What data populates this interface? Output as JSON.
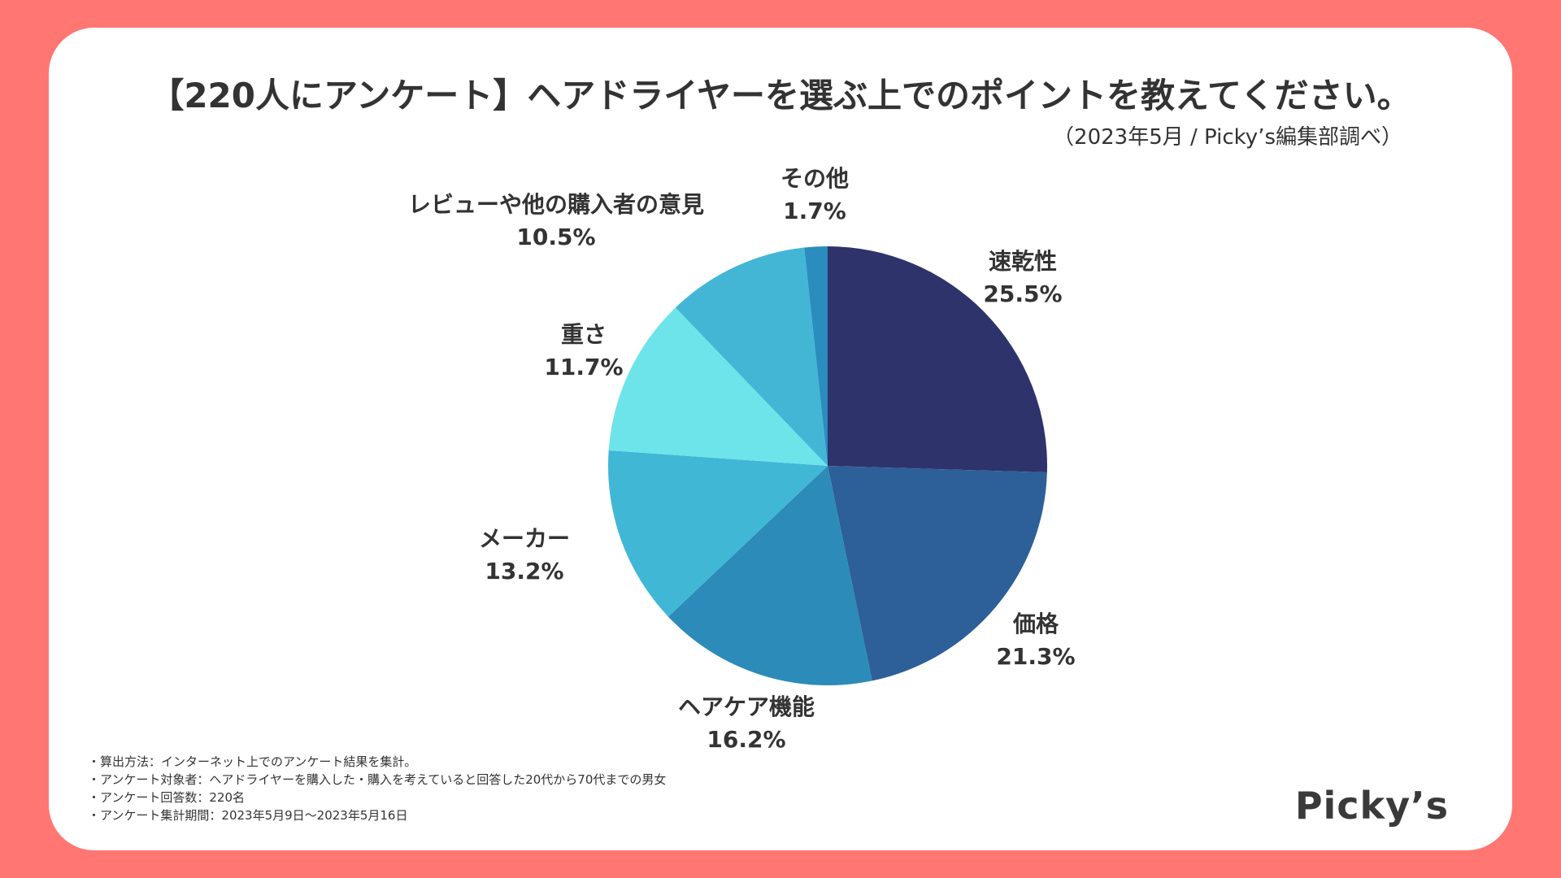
{
  "title": "【220人にアンケート】ヘアドライヤーを選ぶ上でのポイントを教えてください。",
  "source": "（2023年5月 / Picky’s編集部調べ）",
  "chart_data": {
    "type": "pie",
    "unit": "%",
    "start": "12 o'clock",
    "direction": "clockwise",
    "slices": [
      {
        "label": "速乾性",
        "value": 25.5,
        "display": "25.5%",
        "color": "#2f336b"
      },
      {
        "label": "価格",
        "value": 21.3,
        "display": "21.3%",
        "color": "#2d5f98"
      },
      {
        "label": "ヘアケア機能",
        "value": 16.2,
        "display": "16.2%",
        "color": "#2c8bb9"
      },
      {
        "label": "メーカー",
        "value": 13.2,
        "display": "13.2%",
        "color": "#41b7d6"
      },
      {
        "label": "重さ",
        "value": 11.7,
        "display": "11.7%",
        "color": "#6de4ea"
      },
      {
        "label": "レビューや他の購入者の意見",
        "value": 10.5,
        "display": "10.5%",
        "color": "#43b6d6"
      },
      {
        "label": "その他",
        "value": 1.7,
        "display": "1.7%",
        "color": "#2b8cbe"
      }
    ]
  },
  "notes": [
    "・算出方法：インターネット上でのアンケート結果を集計。",
    "・アンケート対象者：ヘアドライヤーを購入した・購入を考えていると回答した20代から70代までの男女",
    "・アンケート回答数：220名",
    "・アンケート集計期間：2023年5月9日〜2023年5月16日"
  ],
  "logo": "Picky’s"
}
